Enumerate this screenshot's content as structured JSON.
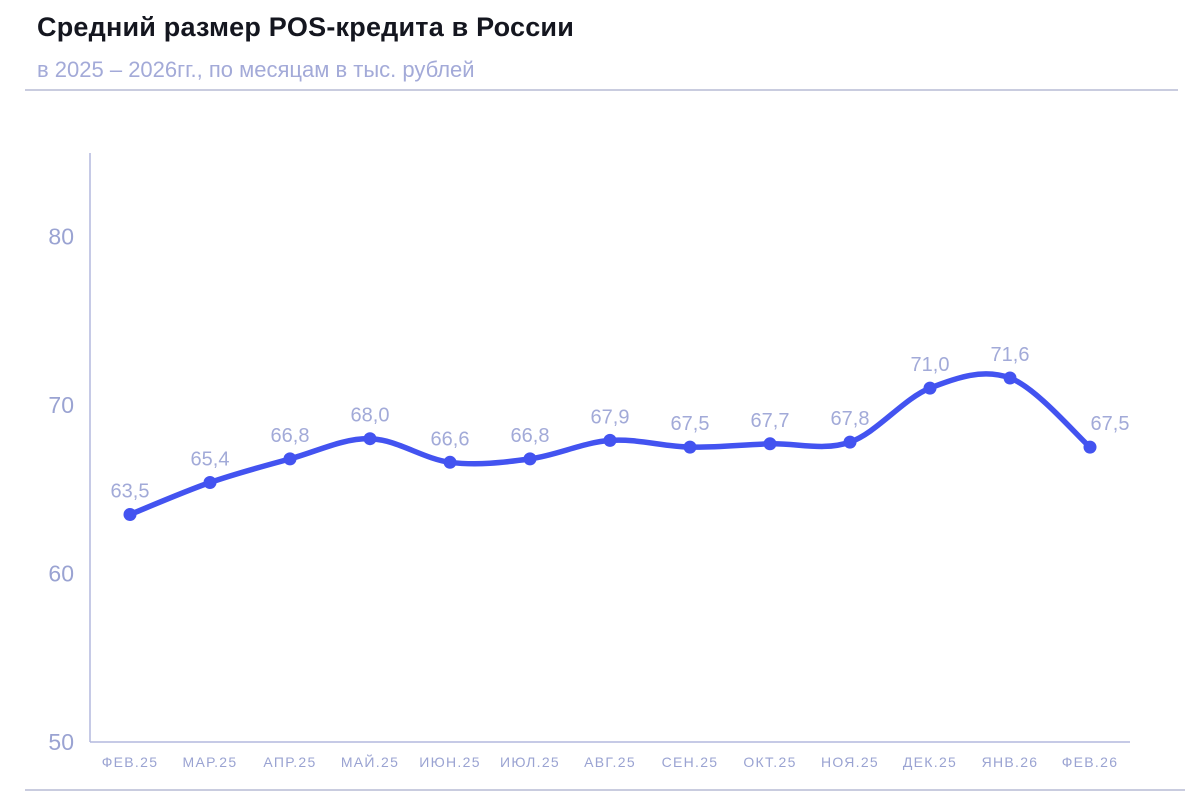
{
  "header": {
    "title": "Средний размер POS-кредита в России",
    "subtitle": "в 2025 – 2026гг., по месяцам в тыс. рублей"
  },
  "chart_data": {
    "type": "line",
    "title": "Средний размер POS-кредита в России",
    "subtitle": "в 2025 – 2026гг., по месяцам в тыс. рублей",
    "xlabel": "",
    "ylabel": "тыс. рублей",
    "categories": [
      "ФЕВ.25",
      "МАР.25",
      "АПР.25",
      "МАЙ.25",
      "ИЮН.25",
      "ИЮЛ.25",
      "АВГ.25",
      "СЕН.25",
      "ОКТ.25",
      "НОЯ.25",
      "ДЕК.25",
      "ЯНВ.26",
      "ФЕВ.26"
    ],
    "values": [
      63.5,
      65.4,
      66.8,
      68.0,
      66.6,
      66.8,
      67.9,
      67.5,
      67.7,
      67.8,
      71.0,
      71.6,
      67.5
    ],
    "point_labels": [
      "63,5",
      "65,4",
      "66,8",
      "68,0",
      "66,6",
      "66,8",
      "67,9",
      "67,5",
      "67,7",
      "67,8",
      "71,0",
      "71,6",
      "67,5"
    ],
    "yticks": [
      50,
      60,
      70,
      80
    ],
    "ylim": [
      50,
      85
    ],
    "grid": false,
    "legend_position": "none",
    "line_style": "smooth",
    "colors": {
      "line": "#4353f0",
      "point": "#4353f0",
      "point_label": "#a2aad8",
      "tick_label": "#9aa3d2",
      "axis_line": "#b3b8de",
      "title": "#14161f",
      "subtitle": "#a3aad8",
      "divider": "#c9ccdf"
    }
  }
}
